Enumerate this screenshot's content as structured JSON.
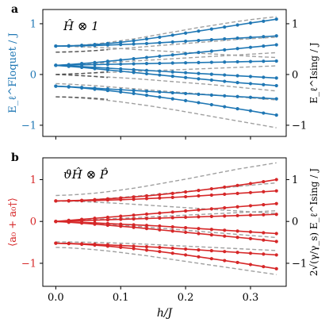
{
  "chart_data": [
    {
      "type": "line",
      "panel_label": "a",
      "annotation": "Ĥ ⊗ 1",
      "ylabel_left": "E_ℓ^Floquet / J",
      "ylabel_right": "E_ℓ^Ising / J",
      "left_axis_color": "#1f77b4",
      "series_color": "#1f77b4",
      "reference_color": "#a0a0a0",
      "reference_dark_color": "#555555",
      "xlim": [
        -0.02,
        0.355
      ],
      "ylim": [
        -1.22,
        1.28
      ],
      "yticks": [
        -1,
        0,
        1
      ],
      "ytick_labels": [
        "−1",
        "0",
        "1"
      ],
      "yticks_right": [
        -1,
        0,
        1
      ],
      "ytick_labels_right": [
        "−1",
        "0",
        "1"
      ],
      "x": [
        0.0,
        0.02,
        0.04,
        0.06,
        0.08,
        0.1,
        0.12,
        0.14,
        0.16,
        0.18,
        0.2,
        0.22,
        0.24,
        0.26,
        0.28,
        0.3,
        0.32,
        0.34
      ],
      "series": [
        {
          "values": [
            0.56,
            0.565,
            0.575,
            0.59,
            0.61,
            0.635,
            0.665,
            0.7,
            0.735,
            0.775,
            0.815,
            0.855,
            0.895,
            0.935,
            0.975,
            1.015,
            1.05,
            1.09
          ]
        },
        {
          "values": [
            0.56,
            0.56,
            0.565,
            0.57,
            0.58,
            0.59,
            0.6,
            0.61,
            0.625,
            0.64,
            0.655,
            0.67,
            0.685,
            0.7,
            0.715,
            0.73,
            0.745,
            0.76
          ]
        },
        {
          "values": [
            0.18,
            0.195,
            0.215,
            0.235,
            0.26,
            0.285,
            0.31,
            0.335,
            0.36,
            0.385,
            0.41,
            0.435,
            0.46,
            0.485,
            0.51,
            0.535,
            0.56,
            0.585
          ]
        },
        {
          "values": [
            0.18,
            0.185,
            0.19,
            0.195,
            0.2,
            0.205,
            0.21,
            0.215,
            0.22,
            0.225,
            0.23,
            0.235,
            0.24,
            0.245,
            0.25,
            0.255,
            0.26,
            0.265
          ]
        },
        {
          "values": [
            0.18,
            0.17,
            0.155,
            0.14,
            0.125,
            0.11,
            0.095,
            0.08,
            0.065,
            0.05,
            0.035,
            0.02,
            0.005,
            -0.01,
            -0.025,
            -0.04,
            -0.055,
            -0.07
          ]
        },
        {
          "values": [
            0.18,
            0.16,
            0.14,
            0.115,
            0.09,
            0.065,
            0.04,
            0.015,
            -0.01,
            -0.035,
            -0.06,
            -0.085,
            -0.11,
            -0.135,
            -0.16,
            -0.18,
            -0.2,
            -0.22
          ]
        },
        {
          "values": [
            -0.23,
            -0.24,
            -0.255,
            -0.27,
            -0.285,
            -0.3,
            -0.315,
            -0.33,
            -0.345,
            -0.36,
            -0.375,
            -0.39,
            -0.405,
            -0.42,
            -0.435,
            -0.45,
            -0.465,
            -0.48
          ]
        },
        {
          "values": [
            -0.23,
            -0.245,
            -0.265,
            -0.29,
            -0.315,
            -0.345,
            -0.375,
            -0.41,
            -0.445,
            -0.48,
            -0.515,
            -0.555,
            -0.595,
            -0.635,
            -0.675,
            -0.715,
            -0.76,
            -0.8
          ]
        }
      ],
      "reference_curves": [
        {
          "values": [
            0.56,
            0.565,
            0.58,
            0.6,
            0.63,
            0.665,
            0.7,
            0.745,
            0.79,
            0.835,
            0.88,
            0.925,
            0.965,
            1.005,
            1.045,
            1.08,
            1.11,
            1.14
          ]
        },
        {
          "values": [
            0.44,
            0.445,
            0.455,
            0.47,
            0.49,
            0.51,
            0.53,
            0.55,
            0.57,
            0.59,
            0.61,
            0.63,
            0.65,
            0.67,
            0.69,
            0.705,
            0.72,
            0.735
          ]
        },
        {
          "values": [
            0.56,
            0.555,
            0.545,
            0.535,
            0.525,
            0.51,
            0.495,
            0.48,
            0.465,
            0.45,
            0.435,
            0.42,
            0.405,
            0.39,
            0.375,
            0.36,
            0.345,
            0.335
          ]
        },
        {
          "values": [
            0.18,
            0.19,
            0.205,
            0.22,
            0.235,
            0.25,
            0.265,
            0.28,
            0.295,
            0.31,
            0.325,
            0.34,
            0.355,
            0.37,
            0.385,
            0.4,
            0.415,
            0.43
          ]
        },
        {
          "values": [
            0.0,
            0.01,
            0.02,
            0.03,
            0.04,
            0.05,
            0.06,
            0.07,
            0.08,
            0.09,
            0.1,
            0.11,
            0.12,
            0.13,
            0.14,
            0.15,
            0.16,
            0.17
          ]
        },
        {
          "values": [
            0.0,
            -0.01,
            -0.02,
            -0.035,
            -0.05,
            -0.065,
            -0.08,
            -0.1,
            -0.12,
            -0.14,
            -0.16,
            -0.18,
            -0.2,
            -0.225,
            -0.25,
            -0.275,
            -0.3,
            -0.325
          ]
        },
        {
          "values": [
            -0.18,
            -0.19,
            -0.205,
            -0.22,
            -0.24,
            -0.26,
            -0.28,
            -0.3,
            -0.32,
            -0.34,
            -0.36,
            -0.38,
            -0.4,
            -0.42,
            -0.44,
            -0.46,
            -0.48,
            -0.5
          ]
        },
        {
          "values": [
            -0.44,
            -0.45,
            -0.465,
            -0.485,
            -0.51,
            -0.54,
            -0.575,
            -0.61,
            -0.65,
            -0.69,
            -0.735,
            -0.78,
            -0.825,
            -0.87,
            -0.915,
            -0.96,
            -1.005,
            -1.05
          ]
        }
      ],
      "dark_reference_curves": [
        {
          "values": [
            0.44,
            0.445,
            0.455,
            0.47,
            0.49
          ]
        },
        {
          "values": [
            0.0,
            0.01,
            0.02,
            0.035,
            0.05
          ]
        },
        {
          "values": [
            0.0,
            -0.01,
            -0.025,
            -0.04,
            -0.06
          ]
        },
        {
          "values": [
            -0.44,
            -0.445,
            -0.455,
            -0.47,
            -0.49
          ]
        }
      ]
    },
    {
      "type": "line",
      "panel_label": "b",
      "annotation": "ϑĤ ⊗ P̂",
      "ylabel_left": "⟨a₀ + a₀†⟩",
      "ylabel_right": "2√(γ/γ_s) E_ℓ^Ising / J",
      "left_axis_color": "#d62728",
      "series_color": "#d62728",
      "reference_color": "#a0a0a0",
      "xlabel": "h/J",
      "xlim": [
        -0.02,
        0.355
      ],
      "ylim": [
        -1.55,
        1.52
      ],
      "yticks": [
        -1,
        0,
        1
      ],
      "ytick_labels": [
        "−1",
        "0",
        "1"
      ],
      "yticks_right": [
        -1,
        0,
        1
      ],
      "ytick_labels_right": [
        "−1",
        "0",
        "1"
      ],
      "xticks": [
        0.0,
        0.1,
        0.2,
        0.3
      ],
      "xtick_labels": [
        "0.0",
        "0.1",
        "0.2",
        "0.3"
      ],
      "x": [
        0.0,
        0.02,
        0.04,
        0.06,
        0.08,
        0.1,
        0.12,
        0.14,
        0.16,
        0.18,
        0.2,
        0.22,
        0.24,
        0.26,
        0.28,
        0.3,
        0.32,
        0.34
      ],
      "series": [
        {
          "values": [
            0.49,
            0.495,
            0.505,
            0.52,
            0.54,
            0.56,
            0.585,
            0.61,
            0.64,
            0.67,
            0.705,
            0.74,
            0.78,
            0.82,
            0.86,
            0.905,
            0.95,
            1.0
          ]
        },
        {
          "values": [
            0.49,
            0.49,
            0.495,
            0.5,
            0.51,
            0.52,
            0.53,
            0.545,
            0.56,
            0.575,
            0.59,
            0.61,
            0.63,
            0.65,
            0.67,
            0.69,
            0.71,
            0.73
          ]
        },
        {
          "values": [
            0.0,
            0.025,
            0.05,
            0.075,
            0.1,
            0.125,
            0.15,
            0.175,
            0.2,
            0.225,
            0.25,
            0.275,
            0.3,
            0.325,
            0.35,
            0.375,
            0.4,
            0.425
          ]
        },
        {
          "values": [
            0.0,
            0.01,
            0.02,
            0.03,
            0.04,
            0.05,
            0.06,
            0.07,
            0.08,
            0.09,
            0.1,
            0.11,
            0.12,
            0.13,
            0.14,
            0.15,
            0.16,
            0.17
          ]
        },
        {
          "values": [
            0.0,
            -0.01,
            -0.02,
            -0.035,
            -0.05,
            -0.065,
            -0.08,
            -0.095,
            -0.11,
            -0.13,
            -0.15,
            -0.17,
            -0.19,
            -0.21,
            -0.23,
            -0.25,
            -0.27,
            -0.29
          ]
        },
        {
          "values": [
            0.0,
            -0.02,
            -0.04,
            -0.065,
            -0.09,
            -0.115,
            -0.14,
            -0.17,
            -0.2,
            -0.23,
            -0.26,
            -0.29,
            -0.32,
            -0.35,
            -0.38,
            -0.41,
            -0.445,
            -0.48
          ]
        },
        {
          "values": [
            -0.52,
            -0.525,
            -0.535,
            -0.545,
            -0.56,
            -0.575,
            -0.59,
            -0.605,
            -0.62,
            -0.64,
            -0.66,
            -0.68,
            -0.7,
            -0.72,
            -0.74,
            -0.76,
            -0.78,
            -0.8
          ]
        },
        {
          "values": [
            -0.52,
            -0.53,
            -0.545,
            -0.565,
            -0.59,
            -0.62,
            -0.65,
            -0.685,
            -0.72,
            -0.76,
            -0.8,
            -0.845,
            -0.89,
            -0.935,
            -0.98,
            -1.03,
            -1.08,
            -1.13
          ]
        }
      ],
      "reference_curves": [
        {
          "values": [
            0.62,
            0.63,
            0.65,
            0.675,
            0.71,
            0.75,
            0.795,
            0.845,
            0.9,
            0.955,
            1.01,
            1.07,
            1.13,
            1.19,
            1.25,
            1.3,
            1.35,
            1.4
          ]
        },
        {
          "values": [
            0.48,
            0.49,
            0.505,
            0.525,
            0.55,
            0.575,
            0.6,
            0.625,
            0.655,
            0.685,
            0.715,
            0.745,
            0.775,
            0.805,
            0.835,
            0.865,
            0.895,
            0.92
          ]
        },
        {
          "values": [
            0.49,
            0.485,
            0.475,
            0.46,
            0.445,
            0.43,
            0.41,
            0.39,
            0.37,
            0.35,
            0.33,
            0.31,
            0.29,
            0.27,
            0.25,
            0.23,
            0.21,
            0.19
          ]
        },
        {
          "values": [
            0.0,
            0.015,
            0.03,
            0.045,
            0.06,
            0.075,
            0.09,
            0.105,
            0.12,
            0.135,
            0.15,
            0.165,
            0.18,
            0.195,
            0.21,
            0.225,
            0.24,
            0.255
          ]
        },
        {
          "values": [
            0.0,
            -0.015,
            -0.03,
            -0.05,
            -0.07,
            -0.09,
            -0.11,
            -0.135,
            -0.16,
            -0.185,
            -0.21,
            -0.235,
            -0.26,
            -0.285,
            -0.31,
            -0.335,
            -0.36,
            -0.385
          ]
        },
        {
          "values": [
            -0.49,
            -0.49,
            -0.495,
            -0.5,
            -0.51,
            -0.52,
            -0.53,
            -0.545,
            -0.56,
            -0.575,
            -0.59,
            -0.605,
            -0.62,
            -0.635,
            -0.65,
            -0.665,
            -0.68,
            -0.695
          ]
        },
        {
          "values": [
            -0.62,
            -0.63,
            -0.65,
            -0.675,
            -0.705,
            -0.74,
            -0.78,
            -0.82,
            -0.865,
            -0.91,
            -0.955,
            -1.0,
            -1.045,
            -1.09,
            -1.135,
            -1.18,
            -1.225,
            -1.27
          ]
        }
      ]
    }
  ]
}
